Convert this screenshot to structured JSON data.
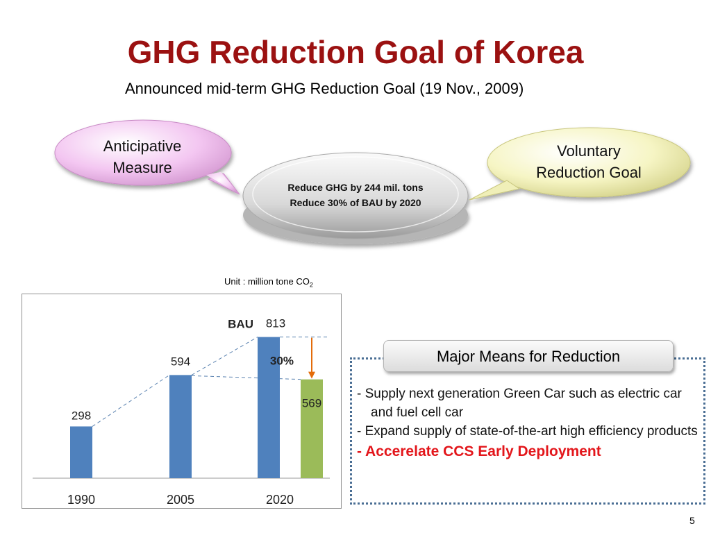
{
  "slide": {
    "title": "GHG Reduction Goal of Korea",
    "subtitle": "Announced mid-term GHG Reduction Goal (19 Nov., 2009)",
    "page_number": "5"
  },
  "bubbles": {
    "left": {
      "line1": "Anticipative",
      "line2": "Measure",
      "color": "#f3c6f1"
    },
    "right": {
      "line1": "Voluntary",
      "line2": "Reduction Goal",
      "color": "#f6f5c4"
    },
    "center": {
      "line1": "Reduce GHG by 244 mil. tons",
      "line2": "Reduce 30% of  BAU by 2020",
      "color": "#d8d8d8"
    }
  },
  "unit": {
    "prefix": "Unit : million tone CO",
    "subscript": "2"
  },
  "chart_data": {
    "type": "bar",
    "categories": [
      "1990",
      "2005",
      "2020"
    ],
    "series": [
      {
        "values": [
          298,
          594,
          813
        ],
        "color": "#4f81bd"
      },
      {
        "values": [
          null,
          null,
          569
        ],
        "color": "#9bbb59"
      }
    ],
    "data_labels": [
      "298",
      "594",
      "813",
      "569"
    ],
    "annotations": {
      "bau_label": "BAU",
      "reduction_label": "30%"
    },
    "arrow_color": "#e46c0a",
    "ylim": [
      0,
      900
    ],
    "grid": false
  },
  "means": {
    "header": "Major Means for Reduction",
    "items": [
      "- Supply next generation Green Car such as electric car and fuel cell car",
      "- Expand supply of state-of-the-art high efficiency products",
      "- Accerelate CCS Early Deployment"
    ],
    "highlight_color": "#e3161b"
  }
}
